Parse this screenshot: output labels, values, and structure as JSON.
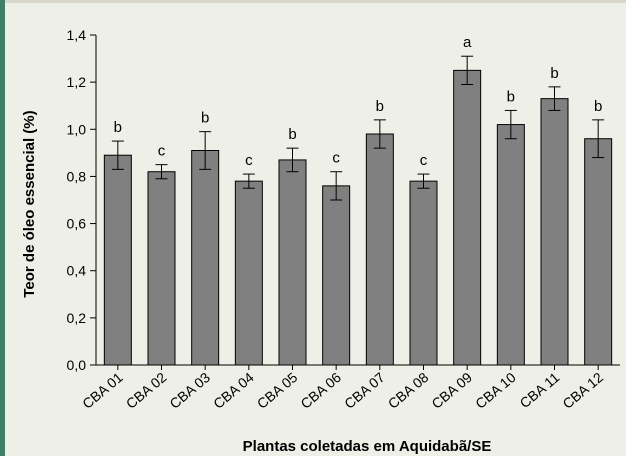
{
  "chart_data": {
    "type": "bar",
    "title": "",
    "xlabel": "Plantas coletadas em Aquidabã/SE",
    "ylabel": "Teor de óleo essencial (%)",
    "ylim": [
      0,
      1.4
    ],
    "yticks": [
      "0,0",
      "0,2",
      "0,4",
      "0,6",
      "0,8",
      "1,0",
      "1,2",
      "1,4"
    ],
    "categories": [
      "CBA 01",
      "CBA 02",
      "CBA 03",
      "CBA 04",
      "CBA 05",
      "CBA 06",
      "CBA 07",
      "CBA 08",
      "CBA 09",
      "CBA 10",
      "CBA 11",
      "CBA 12"
    ],
    "values": [
      0.89,
      0.82,
      0.91,
      0.78,
      0.87,
      0.76,
      0.98,
      0.78,
      1.25,
      1.02,
      1.13,
      0.96
    ],
    "errors": [
      0.06,
      0.03,
      0.08,
      0.03,
      0.05,
      0.06,
      0.06,
      0.03,
      0.06,
      0.06,
      0.05,
      0.08
    ],
    "significance": [
      "b",
      "c",
      "b",
      "c",
      "b",
      "c",
      "b",
      "c",
      "a",
      "b",
      "b",
      "b"
    ],
    "bar_color": "#808080",
    "grid": false
  }
}
